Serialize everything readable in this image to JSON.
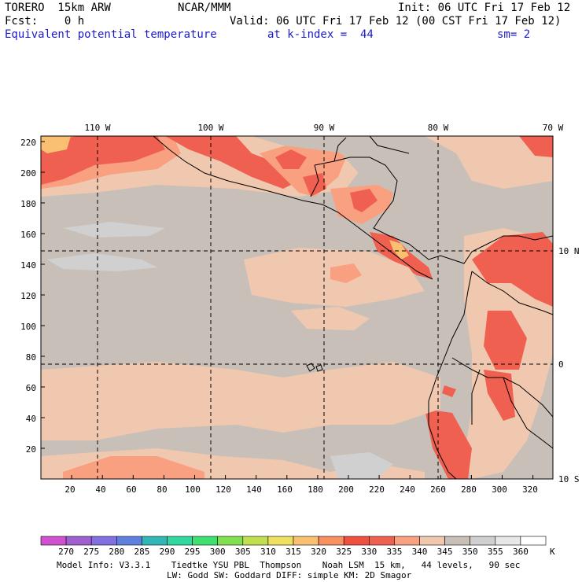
{
  "header": {
    "model": "TORERO  15km ARW",
    "center": "NCAR/MMM",
    "init": "Init: 06 UTC Fri 17 Feb 12",
    "fcst": "Fcst:    0 h",
    "valid": "Valid: 06 UTC Fri 17 Feb 12 (00 CST Fri 17 Feb 12)",
    "field": "Equivalent potential temperature",
    "level": "at k-index =  44",
    "smooth": "sm= 2"
  },
  "map": {
    "lon_labels": [
      "110 W",
      "100 W",
      "90 W",
      "80 W",
      "70 W"
    ],
    "lat_labels": [
      "10 N",
      "0",
      "10 S"
    ],
    "x_ticks": [
      "20",
      "40",
      "60",
      "80",
      "100",
      "120",
      "140",
      "160",
      "180",
      "200",
      "220",
      "240",
      "260",
      "280",
      "300",
      "320"
    ],
    "y_ticks": [
      "220",
      "200",
      "180",
      "160",
      "140",
      "120",
      "100",
      "80",
      "60",
      "40",
      "20"
    ]
  },
  "colorbar": {
    "labels": [
      "270",
      "275",
      "280",
      "285",
      "290",
      "295",
      "300",
      "305",
      "310",
      "315",
      "320",
      "325",
      "330",
      "335",
      "340",
      "345",
      "350",
      "355",
      "360"
    ],
    "unit": "K",
    "colors": [
      "#d050d0",
      "#a060d0",
      "#8070e0",
      "#6080e0",
      "#30b8b8",
      "#30d8a0",
      "#40e070",
      "#80e050",
      "#c0e050",
      "#f0e060",
      "#f8c070",
      "#f89060",
      "#f05040",
      "#f06050",
      "#f8a080",
      "#f0c8b0",
      "#c8c0b8",
      "#d0d0d0",
      "#e8e8e8",
      "#ffffff"
    ]
  },
  "footer": {
    "line1": "Model Info: V3.3.1    Tiedtke YSU PBL  Thompson    Noah LSM  15 km,   44 levels,   90 sec",
    "line2": "LW: Godd SW: Goddard DIFF: simple KM: 2D Smagor"
  }
}
